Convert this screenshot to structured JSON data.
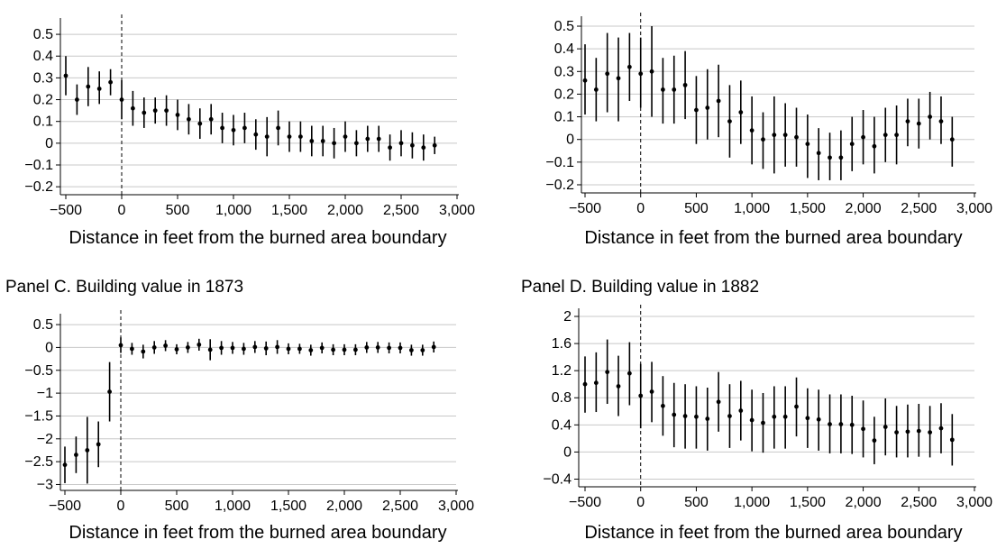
{
  "chart_data": [
    {
      "id": "A",
      "type": "scatter",
      "title": "",
      "xlabel": "Distance in feet from the burned area boundary",
      "ylabel": "",
      "xlim": [
        -520,
        3000
      ],
      "ylim": [
        -0.22,
        0.55
      ],
      "xticks": [
        -500,
        0,
        500,
        1000,
        1500,
        2000,
        2500,
        3000
      ],
      "xtick_labels": [
        "−500",
        "0",
        "500",
        "1,000",
        "1,500",
        "2,000",
        "2,500",
        "3,000"
      ],
      "yticks": [
        -0.2,
        -0.1,
        0,
        0.1,
        0.2,
        0.3,
        0.4,
        0.5
      ],
      "ytick_labels": [
        "−0.2",
        "−0.1",
        "0",
        "0.1",
        "0.2",
        "0.3",
        "0.4",
        "0.5"
      ],
      "grid": true,
      "boundary_x": 0,
      "x": [
        -500,
        -400,
        -300,
        -200,
        -100,
        0,
        100,
        200,
        300,
        400,
        500,
        600,
        700,
        800,
        900,
        1000,
        1100,
        1200,
        1300,
        1400,
        1500,
        1600,
        1700,
        1800,
        1900,
        2000,
        2100,
        2200,
        2300,
        2400,
        2500,
        2600,
        2700,
        2800
      ],
      "y": [
        0.31,
        0.2,
        0.26,
        0.25,
        0.28,
        0.2,
        0.16,
        0.14,
        0.15,
        0.15,
        0.13,
        0.11,
        0.09,
        0.11,
        0.07,
        0.06,
        0.07,
        0.04,
        0.03,
        0.07,
        0.03,
        0.03,
        0.01,
        0.01,
        0.0,
        0.03,
        0.0,
        0.02,
        0.02,
        -0.02,
        0.0,
        -0.01,
        -0.02,
        -0.01
      ],
      "lower": [
        0.22,
        0.13,
        0.17,
        0.18,
        0.22,
        0.11,
        0.08,
        0.07,
        0.09,
        0.08,
        0.06,
        0.04,
        0.02,
        0.04,
        0.0,
        -0.01,
        0.0,
        -0.03,
        -0.06,
        -0.01,
        -0.04,
        -0.04,
        -0.06,
        -0.06,
        -0.07,
        -0.04,
        -0.06,
        -0.04,
        -0.04,
        -0.08,
        -0.06,
        -0.07,
        -0.08,
        -0.05
      ],
      "upper": [
        0.4,
        0.27,
        0.35,
        0.33,
        0.34,
        0.29,
        0.24,
        0.21,
        0.21,
        0.22,
        0.2,
        0.18,
        0.16,
        0.18,
        0.14,
        0.13,
        0.14,
        0.11,
        0.12,
        0.15,
        0.1,
        0.1,
        0.08,
        0.08,
        0.07,
        0.1,
        0.06,
        0.08,
        0.08,
        0.04,
        0.06,
        0.05,
        0.04,
        0.03
      ]
    },
    {
      "id": "B",
      "type": "scatter",
      "title": "",
      "xlabel": "Distance in feet from the burned area boundary",
      "ylabel": "",
      "xlim": [
        -520,
        3000
      ],
      "ylim": [
        -0.22,
        0.52
      ],
      "xticks": [
        -500,
        0,
        500,
        1000,
        1500,
        2000,
        2500,
        3000
      ],
      "xtick_labels": [
        "−500",
        "0",
        "500",
        "1,000",
        "1,500",
        "2,000",
        "2,500",
        "3,000"
      ],
      "yticks": [
        -0.2,
        -0.1,
        0,
        0.1,
        0.2,
        0.3,
        0.4,
        0.5
      ],
      "ytick_labels": [
        "−0.2",
        "−0.1",
        "0",
        "0.1",
        "0.2",
        "0.3",
        "0.4",
        "0.5"
      ],
      "grid": true,
      "boundary_x": 0,
      "x": [
        -500,
        -400,
        -300,
        -200,
        -100,
        0,
        100,
        200,
        300,
        400,
        500,
        600,
        700,
        800,
        900,
        1000,
        1100,
        1200,
        1300,
        1400,
        1500,
        1600,
        1700,
        1800,
        1900,
        2000,
        2100,
        2200,
        2300,
        2400,
        2500,
        2600,
        2700,
        2800
      ],
      "y": [
        0.26,
        0.22,
        0.29,
        0.27,
        0.32,
        0.29,
        0.3,
        0.22,
        0.22,
        0.24,
        0.13,
        0.14,
        0.17,
        0.08,
        0.12,
        0.04,
        0.0,
        0.02,
        0.02,
        0.01,
        -0.02,
        -0.06,
        -0.08,
        -0.08,
        -0.02,
        0.01,
        -0.03,
        0.02,
        0.02,
        0.08,
        0.07,
        0.1,
        0.08,
        0.0
      ],
      "lower": [
        0.11,
        0.08,
        0.12,
        0.08,
        0.17,
        0.14,
        0.1,
        0.07,
        0.07,
        0.09,
        -0.02,
        0.0,
        0.01,
        -0.08,
        -0.02,
        -0.11,
        -0.13,
        -0.15,
        -0.12,
        -0.12,
        -0.17,
        -0.18,
        -0.18,
        -0.18,
        -0.14,
        -0.11,
        -0.15,
        -0.1,
        -0.11,
        -0.03,
        -0.04,
        0.0,
        -0.02,
        -0.12
      ],
      "upper": [
        0.42,
        0.36,
        0.47,
        0.45,
        0.47,
        0.45,
        0.5,
        0.36,
        0.37,
        0.39,
        0.28,
        0.31,
        0.33,
        0.24,
        0.26,
        0.19,
        0.12,
        0.19,
        0.16,
        0.14,
        0.11,
        0.05,
        0.03,
        0.04,
        0.1,
        0.13,
        0.1,
        0.14,
        0.15,
        0.18,
        0.18,
        0.21,
        0.19,
        0.1
      ]
    },
    {
      "id": "C",
      "type": "scatter",
      "title": "Panel C. Building value in 1873",
      "xlabel": "Distance in feet from the burned area boundary",
      "ylabel": "",
      "xlim": [
        -520,
        3000
      ],
      "ylim": [
        -3.05,
        0.62
      ],
      "xticks": [
        -500,
        0,
        500,
        1000,
        1500,
        2000,
        2500,
        3000
      ],
      "xtick_labels": [
        "−500",
        "0",
        "500",
        "1,000",
        "1,500",
        "2,000",
        "2,500",
        "3,000"
      ],
      "yticks": [
        -3,
        -2.5,
        -2,
        -1.5,
        -1,
        -0.5,
        0,
        0.5
      ],
      "ytick_labels": [
        "−3",
        "−2.5",
        "−2",
        "−1.5",
        "−1",
        "−0.5",
        "0",
        "0.5"
      ],
      "grid": true,
      "boundary_x": 0,
      "x": [
        -500,
        -400,
        -300,
        -200,
        -100,
        0,
        100,
        200,
        300,
        400,
        500,
        600,
        700,
        800,
        900,
        1000,
        1100,
        1200,
        1300,
        1400,
        1500,
        1600,
        1700,
        1800,
        1900,
        2000,
        2100,
        2200,
        2300,
        2400,
        2500,
        2600,
        2700,
        2800
      ],
      "y": [
        -2.57,
        -2.35,
        -2.25,
        -2.12,
        -0.97,
        0.05,
        -0.03,
        -0.09,
        0.0,
        0.04,
        -0.04,
        0.0,
        0.06,
        -0.05,
        -0.01,
        -0.01,
        -0.03,
        0.01,
        -0.02,
        0.01,
        -0.03,
        -0.03,
        -0.06,
        -0.01,
        -0.05,
        -0.05,
        -0.05,
        0.0,
        0.0,
        -0.01,
        -0.01,
        -0.06,
        -0.06,
        0.01
      ],
      "lower": [
        -2.97,
        -2.75,
        -2.98,
        -2.62,
        -1.62,
        -0.12,
        -0.16,
        -0.24,
        -0.14,
        -0.08,
        -0.15,
        -0.12,
        -0.07,
        -0.28,
        -0.16,
        -0.14,
        -0.16,
        -0.12,
        -0.17,
        -0.14,
        -0.15,
        -0.14,
        -0.18,
        -0.13,
        -0.17,
        -0.17,
        -0.17,
        -0.12,
        -0.12,
        -0.13,
        -0.13,
        -0.18,
        -0.18,
        -0.11
      ],
      "upper": [
        -2.17,
        -1.95,
        -1.52,
        -1.62,
        -0.32,
        0.22,
        0.1,
        0.06,
        0.14,
        0.16,
        0.07,
        0.12,
        0.19,
        0.18,
        0.14,
        0.12,
        0.1,
        0.14,
        0.13,
        0.16,
        0.09,
        0.08,
        0.06,
        0.11,
        0.07,
        0.07,
        0.07,
        0.12,
        0.12,
        0.11,
        0.11,
        0.06,
        0.06,
        0.13
      ]
    },
    {
      "id": "D",
      "type": "scatter",
      "title": "Panel D. Building value in 1882",
      "xlabel": "Distance in feet from the burned area boundary",
      "ylabel": "",
      "xlim": [
        -520,
        3000
      ],
      "ylim": [
        -0.46,
        2.04
      ],
      "xticks": [
        -500,
        0,
        500,
        1000,
        1500,
        2000,
        2500,
        3000
      ],
      "xtick_labels": [
        "−500",
        "0",
        "500",
        "1,000",
        "1,500",
        "2,000",
        "2,500",
        "3,000"
      ],
      "yticks": [
        -0.4,
        0,
        0.4,
        0.8,
        1.2,
        1.6,
        2
      ],
      "ytick_labels": [
        "−0.4",
        "0",
        "0.4",
        "0.8",
        "1.2",
        "1.6",
        "2"
      ],
      "grid": true,
      "boundary_x": 0,
      "x": [
        -500,
        -400,
        -300,
        -200,
        -100,
        0,
        100,
        200,
        300,
        400,
        500,
        600,
        700,
        800,
        900,
        1000,
        1100,
        1200,
        1300,
        1400,
        1500,
        1600,
        1700,
        1800,
        1900,
        2000,
        2100,
        2200,
        2300,
        2400,
        2500,
        2600,
        2700,
        2800
      ],
      "y": [
        1.0,
        1.02,
        1.18,
        0.97,
        1.16,
        0.83,
        0.89,
        0.68,
        0.55,
        0.53,
        0.52,
        0.49,
        0.74,
        0.53,
        0.61,
        0.47,
        0.43,
        0.52,
        0.52,
        0.67,
        0.5,
        0.48,
        0.41,
        0.41,
        0.4,
        0.34,
        0.17,
        0.37,
        0.29,
        0.3,
        0.31,
        0.29,
        0.35,
        0.18
      ],
      "lower": [
        0.58,
        0.59,
        0.71,
        0.53,
        0.69,
        0.35,
        0.44,
        0.24,
        0.07,
        0.05,
        0.05,
        0.02,
        0.3,
        0.06,
        0.17,
        0.01,
        -0.01,
        0.05,
        0.05,
        0.23,
        0.06,
        0.02,
        -0.02,
        -0.02,
        -0.03,
        -0.08,
        -0.18,
        -0.05,
        -0.08,
        -0.08,
        -0.07,
        -0.08,
        -0.02,
        -0.2
      ],
      "upper": [
        1.41,
        1.47,
        1.66,
        1.42,
        1.62,
        1.3,
        1.33,
        1.12,
        1.02,
        1.0,
        0.97,
        0.95,
        1.18,
        1.0,
        1.05,
        0.92,
        0.87,
        0.97,
        0.97,
        1.1,
        0.94,
        0.92,
        0.85,
        0.85,
        0.83,
        0.76,
        0.52,
        0.79,
        0.68,
        0.7,
        0.71,
        0.68,
        0.72,
        0.56
      ]
    }
  ]
}
